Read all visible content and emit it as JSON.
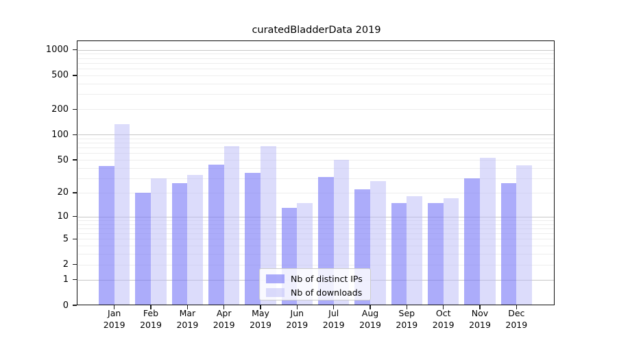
{
  "title": "curatedBladderData 2019",
  "colors": {
    "bar_ips": "rgba(116,116,246,0.60)",
    "bar_ips_hex": "#a9a9f8",
    "bar_downloads": "rgba(187,187,248,0.52)",
    "bar_downloads_hex": "#dcdcfb",
    "grid_major": "#c7c7c7",
    "grid_minor": "#ededed",
    "axis": "#0d0d0d"
  },
  "chart_data": {
    "type": "bar",
    "title": "curatedBladderData 2019",
    "categories": [
      "Jan 2019",
      "Feb 2019",
      "Mar 2019",
      "Apr 2019",
      "May 2019",
      "Jun 2019",
      "Jul 2019",
      "Aug 2019",
      "Sep 2019",
      "Oct 2019",
      "Nov 2019",
      "Dec 2019"
    ],
    "series": [
      {
        "name": "Nb of distinct IPs",
        "values": [
          42,
          20,
          26,
          44,
          35,
          13,
          31,
          22,
          15,
          15,
          30,
          26
        ]
      },
      {
        "name": "Nb of downloads",
        "values": [
          133,
          30,
          33,
          73,
          73,
          15,
          50,
          28,
          18,
          17,
          53,
          43
        ]
      }
    ],
    "xlabel": "",
    "ylabel": "",
    "yscale": "log1p",
    "ylim": [
      0,
      1300
    ],
    "ytick_values": [
      0,
      1,
      2,
      5,
      10,
      20,
      50,
      100,
      200,
      500,
      1000
    ],
    "ytick_labels": [
      "0",
      "1",
      "2",
      "5",
      "10",
      "20",
      "50",
      "100",
      "200",
      "500",
      "1000"
    ],
    "grid": "both",
    "legend_position": "lower-center"
  },
  "legend": {
    "items": [
      {
        "label": "Nb of distinct IPs"
      },
      {
        "label": "Nb of downloads"
      }
    ]
  }
}
